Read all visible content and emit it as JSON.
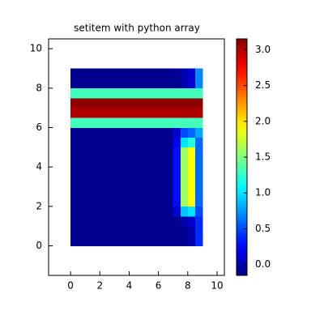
{
  "chart_data": {
    "type": "heatmap",
    "title": "setitem with python array",
    "xbins": [
      0,
      1,
      2,
      3,
      4,
      5,
      6,
      7,
      7.5,
      8,
      8.5,
      9
    ],
    "ybins": [
      0,
      0.5,
      1,
      1.5,
      2,
      2.5,
      3,
      3.5,
      4,
      4.5,
      5,
      5.5,
      6,
      6.5,
      7,
      7.5,
      8,
      8.5,
      9
    ],
    "z": [
      [
        -0.1,
        -0.1,
        -0.1,
        -0.1,
        -0.1,
        -0.1,
        -0.1,
        -0.1,
        -0.1,
        0.0,
        0.4
      ],
      [
        -0.1,
        -0.1,
        -0.1,
        -0.1,
        -0.1,
        -0.1,
        -0.1,
        -0.1,
        -0.1,
        0.0,
        0.4
      ],
      [
        -0.1,
        -0.1,
        -0.1,
        -0.1,
        -0.1,
        -0.1,
        -0.1,
        -0.1,
        0.0,
        0.1,
        0.4
      ],
      [
        -0.1,
        -0.1,
        -0.1,
        -0.1,
        -0.1,
        -0.1,
        -0.1,
        0.1,
        0.9,
        1.0,
        0.5
      ],
      [
        -0.1,
        -0.1,
        -0.1,
        -0.1,
        -0.1,
        -0.1,
        -0.1,
        0.3,
        1.6,
        1.9,
        0.6
      ],
      [
        -0.1,
        -0.1,
        -0.1,
        -0.1,
        -0.1,
        -0.1,
        -0.1,
        0.3,
        1.6,
        1.9,
        0.6
      ],
      [
        -0.1,
        -0.1,
        -0.1,
        -0.1,
        -0.1,
        -0.1,
        -0.1,
        0.3,
        1.6,
        1.9,
        0.6
      ],
      [
        -0.1,
        -0.1,
        -0.1,
        -0.1,
        -0.1,
        -0.1,
        -0.1,
        0.3,
        1.6,
        1.9,
        0.6
      ],
      [
        -0.1,
        -0.1,
        -0.1,
        -0.1,
        -0.1,
        -0.1,
        -0.1,
        0.3,
        1.6,
        1.9,
        0.6
      ],
      [
        -0.1,
        -0.1,
        -0.1,
        -0.1,
        -0.1,
        -0.1,
        -0.1,
        0.3,
        1.6,
        1.9,
        0.6
      ],
      [
        -0.1,
        -0.1,
        -0.1,
        -0.1,
        -0.1,
        -0.1,
        -0.1,
        0.2,
        1.0,
        1.2,
        0.6
      ],
      [
        -0.1,
        -0.1,
        -0.1,
        -0.1,
        -0.1,
        -0.1,
        -0.1,
        0.1,
        0.5,
        0.6,
        0.8
      ],
      [
        1.3,
        1.3,
        1.3,
        1.3,
        1.3,
        1.3,
        1.3,
        1.3,
        1.3,
        1.3,
        1.3
      ],
      [
        3.0,
        3.0,
        3.0,
        3.0,
        3.0,
        3.0,
        3.0,
        3.0,
        3.0,
        3.0,
        3.0
      ],
      [
        3.1,
        3.1,
        3.1,
        3.1,
        3.1,
        3.1,
        3.1,
        3.1,
        3.1,
        3.1,
        3.1
      ],
      [
        1.3,
        1.3,
        1.3,
        1.3,
        1.3,
        1.3,
        1.3,
        1.3,
        1.3,
        1.3,
        1.3
      ],
      [
        -0.1,
        -0.1,
        -0.1,
        -0.1,
        -0.1,
        -0.1,
        -0.1,
        -0.1,
        0.0,
        0.1,
        0.7
      ],
      [
        -0.1,
        -0.1,
        -0.1,
        -0.1,
        -0.1,
        -0.1,
        -0.1,
        -0.1,
        0.0,
        0.1,
        0.7
      ]
    ],
    "colormap": "jet",
    "clim": [
      -0.15,
      3.15
    ],
    "cticks": [
      {
        "value": 0,
        "label": "0.0"
      },
      {
        "value": 0.5,
        "label": "0.5"
      },
      {
        "value": 1,
        "label": "1.0"
      },
      {
        "value": 1.5,
        "label": "1.5"
      },
      {
        "value": 2,
        "label": "2.0"
      },
      {
        "value": 2.5,
        "label": "2.5"
      },
      {
        "value": 3,
        "label": "3.0"
      }
    ],
    "xlim": [
      -1.5,
      10.5
    ],
    "xticks": [
      0,
      2,
      4,
      6,
      8,
      10
    ],
    "ylim": [
      -1.5,
      10.5
    ],
    "yticks": [
      0,
      2,
      4,
      6,
      8,
      10
    ]
  }
}
